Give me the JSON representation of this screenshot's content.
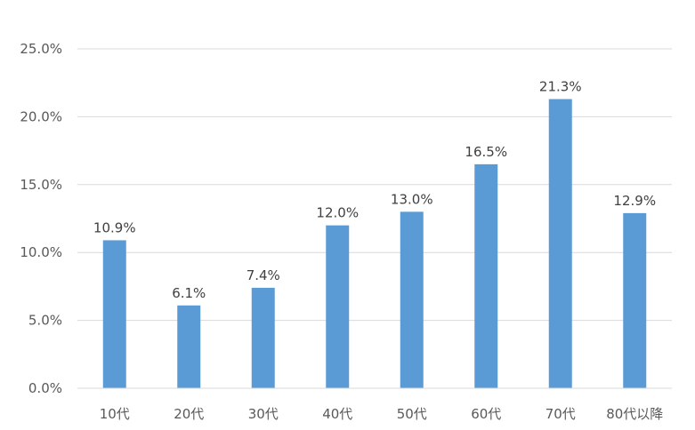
{
  "chart_data": {
    "type": "bar",
    "title": "",
    "xlabel": "",
    "ylabel": "",
    "categories": [
      "10代",
      "20代",
      "30代",
      "40代",
      "50代",
      "60代",
      "70代",
      "80代以降"
    ],
    "values": [
      10.9,
      6.1,
      7.4,
      12.0,
      13.0,
      16.5,
      21.3,
      12.9
    ],
    "data_labels": [
      "10.9%",
      "6.1%",
      "7.4%",
      "12.0%",
      "13.0%",
      "16.5%",
      "21.3%",
      "12.9%"
    ],
    "ylim": [
      0,
      25
    ],
    "yticks": [
      0,
      5,
      10,
      15,
      20,
      25
    ],
    "ytick_labels": [
      "0.0%",
      "5.0%",
      "10.0%",
      "15.0%",
      "20.0%",
      "25.0%"
    ],
    "grid": true,
    "legend": "none",
    "bar_color": "#5b9bd5",
    "grid_color": "#d9d9d9"
  }
}
